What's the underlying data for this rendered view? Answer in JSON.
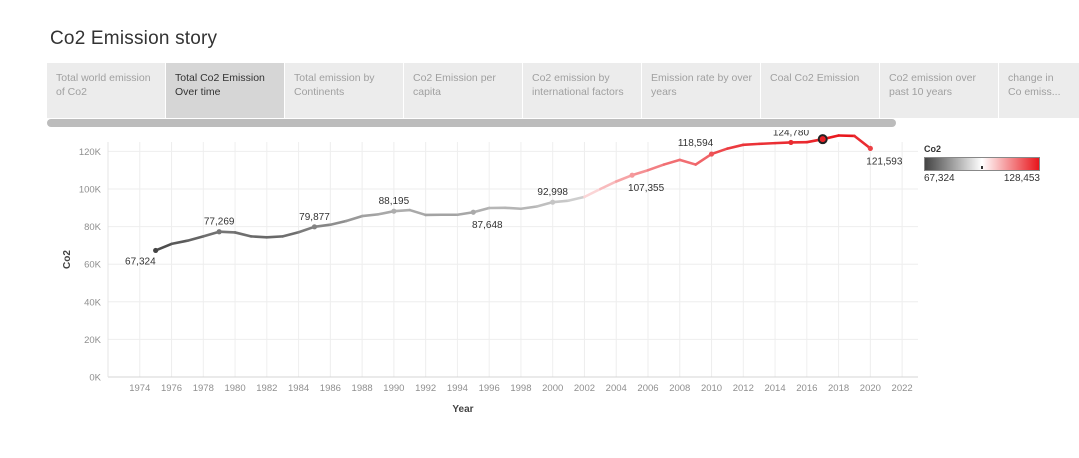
{
  "story_title": "Co2 Emission story",
  "tabs": [
    {
      "label": "Total world emission of Co2",
      "active": false
    },
    {
      "label": "Total Co2 Emission Over time",
      "active": true
    },
    {
      "label": "Total emission by Continents",
      "active": false
    },
    {
      "label": "Co2 Emission per capita",
      "active": false
    },
    {
      "label": "Co2 emission by international factors",
      "active": false
    },
    {
      "label": "Emission rate by over years",
      "active": false
    },
    {
      "label": "Coal Co2 Emission",
      "active": false
    },
    {
      "label": "Co2 emission over past 10 years",
      "active": false
    },
    {
      "label": "change in Co emiss...",
      "active": false
    }
  ],
  "legend": {
    "title": "Co2",
    "min_label": "67,324",
    "max_label": "128,453"
  },
  "colors": {
    "low": "#444444",
    "mid": "#ffffff",
    "high": "#e8151b",
    "grid": "#eeeeee"
  },
  "chart_data": {
    "type": "line",
    "xlabel": "Year",
    "ylabel": "Co2",
    "xlim": [
      1972,
      2023
    ],
    "ylim": [
      0,
      125000
    ],
    "x_ticks": [
      1974,
      1976,
      1978,
      1980,
      1982,
      1984,
      1986,
      1988,
      1990,
      1992,
      1994,
      1996,
      1998,
      2000,
      2002,
      2004,
      2006,
      2008,
      2010,
      2012,
      2014,
      2016,
      2018,
      2020,
      2022
    ],
    "y_ticks": [
      {
        "value": 0,
        "label": "0K"
      },
      {
        "value": 20000,
        "label": "20K"
      },
      {
        "value": 40000,
        "label": "40K"
      },
      {
        "value": 60000,
        "label": "60K"
      },
      {
        "value": 80000,
        "label": "80K"
      },
      {
        "value": 100000,
        "label": "100K"
      },
      {
        "value": 120000,
        "label": "120K"
      }
    ],
    "x": [
      1975,
      1976,
      1977,
      1978,
      1979,
      1980,
      1981,
      1982,
      1983,
      1984,
      1985,
      1986,
      1987,
      1988,
      1989,
      1990,
      1991,
      1992,
      1993,
      1994,
      1995,
      1996,
      1997,
      1998,
      1999,
      2000,
      2001,
      2002,
      2003,
      2004,
      2005,
      2006,
      2007,
      2008,
      2009,
      2010,
      2011,
      2012,
      2013,
      2014,
      2015,
      2016,
      2017,
      2018,
      2019,
      2020
    ],
    "values": [
      67324,
      70800,
      72500,
      74800,
      77269,
      76900,
      74800,
      74300,
      74800,
      77000,
      79877,
      81000,
      83000,
      85600,
      86500,
      88195,
      88800,
      86200,
      86300,
      86300,
      87648,
      89900,
      90000,
      89500,
      90700,
      92998,
      93800,
      95800,
      100000,
      104000,
      107355,
      110000,
      113000,
      115500,
      113000,
      118594,
      121500,
      123500,
      124000,
      124400,
      124780,
      124900,
      126500,
      128453,
      128200,
      121593
    ],
    "data_labels": [
      {
        "x": 1975,
        "text": "67,324",
        "pos": "below-left"
      },
      {
        "x": 1979,
        "text": "77,269",
        "pos": "above"
      },
      {
        "x": 1985,
        "text": "79,877",
        "pos": "above"
      },
      {
        "x": 1990,
        "text": "88,195",
        "pos": "above"
      },
      {
        "x": 1995,
        "text": "87,648",
        "pos": "below-right"
      },
      {
        "x": 2000,
        "text": "92,998",
        "pos": "above"
      },
      {
        "x": 2005,
        "text": "107,355",
        "pos": "below-right"
      },
      {
        "x": 2010,
        "text": "118,594",
        "pos": "above-left"
      },
      {
        "x": 2015,
        "text": "124,780",
        "pos": "above"
      },
      {
        "x": 2020,
        "text": "121,593",
        "pos": "below-right"
      }
    ],
    "marked_points": [
      1975,
      1979,
      1985,
      1990,
      1995,
      2000,
      2005,
      2010,
      2015,
      2017,
      2020
    ]
  }
}
